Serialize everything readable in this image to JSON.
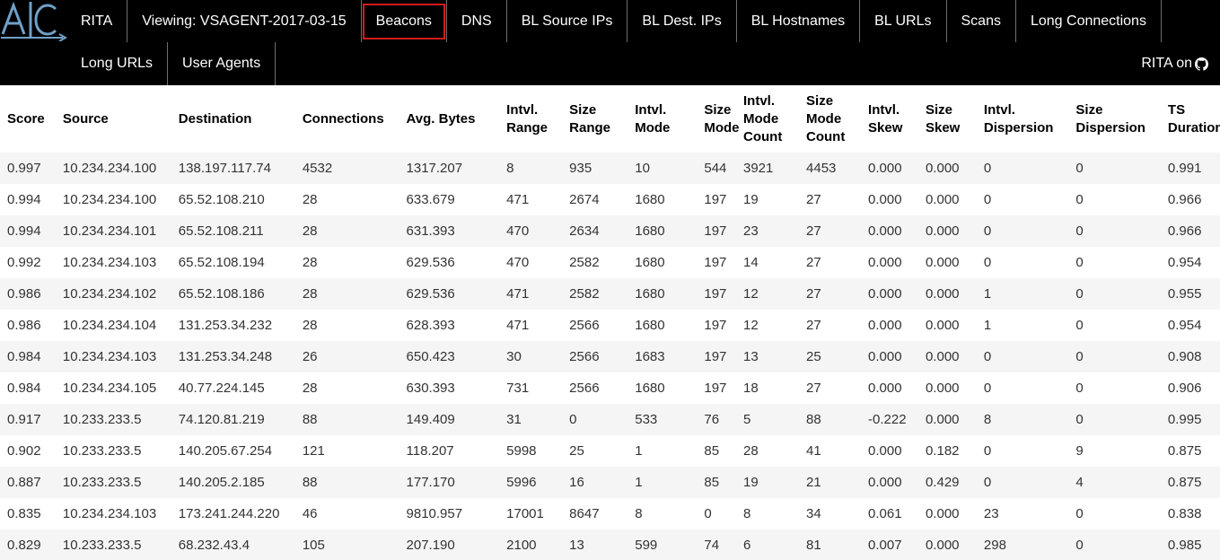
{
  "nav": {
    "row1": [
      {
        "label": "RITA",
        "name": "nav-rita"
      },
      {
        "label": "Viewing: VSAGENT-2017-03-15",
        "name": "nav-viewing-dataset"
      },
      {
        "label": "Beacons",
        "name": "nav-beacons",
        "active": true
      },
      {
        "label": "DNS",
        "name": "nav-dns"
      },
      {
        "label": "BL Source IPs",
        "name": "nav-bl-source-ips"
      },
      {
        "label": "BL Dest. IPs",
        "name": "nav-bl-dest-ips"
      },
      {
        "label": "BL Hostnames",
        "name": "nav-bl-hostnames"
      },
      {
        "label": "BL URLs",
        "name": "nav-bl-urls"
      },
      {
        "label": "Scans",
        "name": "nav-scans"
      },
      {
        "label": "Long Connections",
        "name": "nav-long-connections"
      }
    ],
    "row2": [
      {
        "label": "Long URLs",
        "name": "nav-long-urls"
      },
      {
        "label": "User Agents",
        "name": "nav-user-agents"
      }
    ],
    "github_label": "RITA on",
    "github_icon": "github-icon",
    "active_border_color": "#d11a1a"
  },
  "table": {
    "headers": [
      [
        "Score"
      ],
      [
        "Source"
      ],
      [
        "Destination"
      ],
      [
        "Connections"
      ],
      [
        "Avg. Bytes"
      ],
      [
        "Intvl.",
        "Range"
      ],
      [
        "Size",
        "Range"
      ],
      [
        "Intvl.",
        "Mode"
      ],
      [
        "Size",
        "Mode"
      ],
      [
        "Intvl.",
        "Mode",
        "Count"
      ],
      [
        "Size",
        "Mode",
        "Count"
      ],
      [
        "Intvl.",
        "Skew"
      ],
      [
        "Size",
        "Skew"
      ],
      [
        "Intvl.",
        "Dispersion"
      ],
      [
        "Size",
        "Dispersion"
      ],
      [
        "TS",
        "Duration"
      ]
    ],
    "rows": [
      [
        "0.997",
        "10.234.234.100",
        "138.197.117.74",
        "4532",
        "1317.207",
        "8",
        "935",
        "10",
        "544",
        "3921",
        "4453",
        "0.000",
        "0.000",
        "0",
        "0",
        "0.991"
      ],
      [
        "0.994",
        "10.234.234.100",
        "65.52.108.210",
        "28",
        "633.679",
        "471",
        "2674",
        "1680",
        "197",
        "19",
        "27",
        "0.000",
        "0.000",
        "0",
        "0",
        "0.966"
      ],
      [
        "0.994",
        "10.234.234.101",
        "65.52.108.211",
        "28",
        "631.393",
        "470",
        "2634",
        "1680",
        "197",
        "23",
        "27",
        "0.000",
        "0.000",
        "0",
        "0",
        "0.966"
      ],
      [
        "0.992",
        "10.234.234.103",
        "65.52.108.194",
        "28",
        "629.536",
        "470",
        "2582",
        "1680",
        "197",
        "14",
        "27",
        "0.000",
        "0.000",
        "0",
        "0",
        "0.954"
      ],
      [
        "0.986",
        "10.234.234.102",
        "65.52.108.186",
        "28",
        "629.536",
        "471",
        "2582",
        "1680",
        "197",
        "12",
        "27",
        "0.000",
        "0.000",
        "1",
        "0",
        "0.955"
      ],
      [
        "0.986",
        "10.234.234.104",
        "131.253.34.232",
        "28",
        "628.393",
        "471",
        "2566",
        "1680",
        "197",
        "12",
        "27",
        "0.000",
        "0.000",
        "1",
        "0",
        "0.954"
      ],
      [
        "0.984",
        "10.234.234.103",
        "131.253.34.248",
        "26",
        "650.423",
        "30",
        "2566",
        "1683",
        "197",
        "13",
        "25",
        "0.000",
        "0.000",
        "0",
        "0",
        "0.908"
      ],
      [
        "0.984",
        "10.234.234.105",
        "40.77.224.145",
        "28",
        "630.393",
        "731",
        "2566",
        "1680",
        "197",
        "18",
        "27",
        "0.000",
        "0.000",
        "0",
        "0",
        "0.906"
      ],
      [
        "0.917",
        "10.233.233.5",
        "74.120.81.219",
        "88",
        "149.409",
        "31",
        "0",
        "533",
        "76",
        "5",
        "88",
        "-0.222",
        "0.000",
        "8",
        "0",
        "0.995"
      ],
      [
        "0.902",
        "10.233.233.5",
        "140.205.67.254",
        "121",
        "118.207",
        "5998",
        "25",
        "1",
        "85",
        "28",
        "41",
        "0.000",
        "0.182",
        "0",
        "9",
        "0.875"
      ],
      [
        "0.887",
        "10.233.233.5",
        "140.205.2.185",
        "88",
        "177.170",
        "5996",
        "16",
        "1",
        "85",
        "19",
        "21",
        "0.000",
        "0.429",
        "0",
        "4",
        "0.875"
      ],
      [
        "0.835",
        "10.234.234.103",
        "173.241.244.220",
        "46",
        "9810.957",
        "17001",
        "8647",
        "8",
        "0",
        "8",
        "34",
        "0.061",
        "0.000",
        "23",
        "0",
        "0.838"
      ],
      [
        "0.829",
        "10.233.233.5",
        "68.232.43.4",
        "105",
        "207.190",
        "2100",
        "13",
        "599",
        "74",
        "6",
        "81",
        "0.007",
        "0.000",
        "298",
        "0",
        "0.985"
      ]
    ]
  }
}
